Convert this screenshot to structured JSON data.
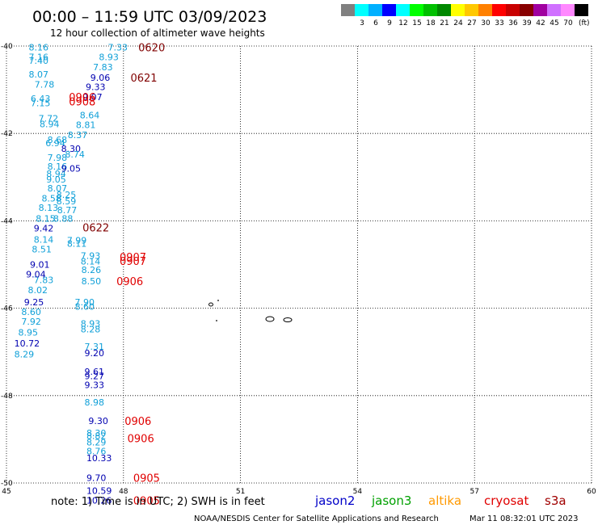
{
  "header": {
    "title": "00:00 – 11:59 UTC 03/09/2023",
    "subtitle": "12 hour collection of altimeter wave heights"
  },
  "legend": {
    "unit": "(ft)",
    "swatches": [
      {
        "label": "",
        "color": "#808080"
      },
      {
        "label": "3",
        "color": "#00ffff"
      },
      {
        "label": "6",
        "color": "#00b0ff"
      },
      {
        "label": "9",
        "color": "#0000ff"
      },
      {
        "label": "12",
        "color": "#00ffff"
      },
      {
        "label": "15",
        "color": "#00ff00"
      },
      {
        "label": "18",
        "color": "#00c000"
      },
      {
        "label": "21",
        "color": "#008800"
      },
      {
        "label": "24",
        "color": "#ffff00"
      },
      {
        "label": "27",
        "color": "#ffc800"
      },
      {
        "label": "30",
        "color": "#ff8000"
      },
      {
        "label": "33",
        "color": "#ff0000"
      },
      {
        "label": "36",
        "color": "#c80000"
      },
      {
        "label": "39",
        "color": "#880000"
      },
      {
        "label": "42",
        "color": "#a000a0"
      },
      {
        "label": "45",
        "color": "#d070ff"
      },
      {
        "label": "70",
        "color": "#ff88ff"
      },
      {
        "label": "",
        "color": "#000000"
      }
    ]
  },
  "axes": {
    "lon_ticks": [
      "45",
      "48",
      "51",
      "54",
      "57",
      "60"
    ],
    "lat_ticks": [
      "-40",
      "-42",
      "-44",
      "-46",
      "-48",
      "-50"
    ],
    "lon_range": [
      45,
      60
    ],
    "lat_range": [
      -40,
      -50
    ]
  },
  "colors": {
    "jason2": "#0000c8",
    "jason3": "#00a000",
    "altika": "#ff9900",
    "cryosat": "#e00000",
    "s3a": "#a00000",
    "pass_light": "#10a0d8",
    "pass_dark": "#0000b0",
    "time_red": "#e00000",
    "time_dark": "#800000"
  },
  "observations": [
    {
      "lon": 45.57,
      "lat": -40.03,
      "text": "8.16",
      "c": "light"
    },
    {
      "lon": 45.57,
      "lat": -40.25,
      "text": "7.16",
      "c": "light"
    },
    {
      "lon": 45.57,
      "lat": -40.33,
      "text": "7.40",
      "c": "light"
    },
    {
      "lon": 45.57,
      "lat": -40.65,
      "text": "8.07",
      "c": "light"
    },
    {
      "lon": 45.72,
      "lat": -40.88,
      "text": "7.78",
      "c": "light"
    },
    {
      "lon": 45.62,
      "lat": -41.2,
      "text": "6.43",
      "c": "light"
    },
    {
      "lon": 45.62,
      "lat": -41.3,
      "text": "7.15",
      "c": "light"
    },
    {
      "lon": 45.82,
      "lat": -41.65,
      "text": "7.72",
      "c": "light"
    },
    {
      "lon": 45.85,
      "lat": -41.78,
      "text": "8.94",
      "c": "light"
    },
    {
      "lon": 46.05,
      "lat": -42.14,
      "text": "8.68",
      "c": "light"
    },
    {
      "lon": 46.0,
      "lat": -42.22,
      "text": "6.94",
      "c": "light"
    },
    {
      "lon": 46.05,
      "lat": -42.55,
      "text": "7.98",
      "c": "light"
    },
    {
      "lon": 46.05,
      "lat": -42.75,
      "text": "8.16",
      "c": "light"
    },
    {
      "lon": 46.02,
      "lat": -42.92,
      "text": "8.94",
      "c": "light"
    },
    {
      "lon": 46.02,
      "lat": -43.05,
      "text": "9.05",
      "c": "light"
    },
    {
      "lon": 46.05,
      "lat": -43.25,
      "text": "8.07",
      "c": "light"
    },
    {
      "lon": 45.9,
      "lat": -43.48,
      "text": "8.58",
      "c": "light"
    },
    {
      "lon": 45.82,
      "lat": -43.7,
      "text": "8.13",
      "c": "light"
    },
    {
      "lon": 45.75,
      "lat": -43.95,
      "text": "8.15",
      "c": "light"
    },
    {
      "lon": 45.7,
      "lat": -44.43,
      "text": "8.14",
      "c": "light"
    },
    {
      "lon": 45.65,
      "lat": -44.65,
      "text": "8.51",
      "c": "light"
    },
    {
      "lon": 45.7,
      "lat": -45.35,
      "text": "7.83",
      "c": "light"
    },
    {
      "lon": 45.55,
      "lat": -45.58,
      "text": "8.02",
      "c": "light"
    },
    {
      "lon": 45.38,
      "lat": -46.08,
      "text": "8.60",
      "c": "light"
    },
    {
      "lon": 45.38,
      "lat": -46.3,
      "text": "7.92",
      "c": "light"
    },
    {
      "lon": 45.3,
      "lat": -46.55,
      "text": "8.95",
      "c": "light"
    },
    {
      "lon": 45.2,
      "lat": -47.05,
      "text": "8.29",
      "c": "light"
    },
    {
      "lon": 45.7,
      "lat": -44.17,
      "text": "9.42",
      "c": "dark"
    },
    {
      "lon": 45.6,
      "lat": -45.0,
      "text": "9.01",
      "c": "dark"
    },
    {
      "lon": 45.5,
      "lat": -45.22,
      "text": "9.04",
      "c": "dark"
    },
    {
      "lon": 45.45,
      "lat": -45.86,
      "text": "9.25",
      "c": "dark"
    },
    {
      "lon": 45.2,
      "lat": -46.8,
      "text": "10.72",
      "c": "dark"
    },
    {
      "lon": 46.4,
      "lat": -42.8,
      "text": "9.05",
      "c": "dark"
    },
    {
      "lon": 46.4,
      "lat": -42.35,
      "text": "8.30",
      "c": "dark"
    },
    {
      "lon": 47.6,
      "lat": -40.03,
      "text": "7.33",
      "c": "light"
    },
    {
      "lon": 47.37,
      "lat": -40.25,
      "text": "8.93",
      "c": "light"
    },
    {
      "lon": 47.22,
      "lat": -40.48,
      "text": "7.83",
      "c": "light"
    },
    {
      "lon": 47.15,
      "lat": -40.72,
      "text": "9.06",
      "c": "dark"
    },
    {
      "lon": 47.03,
      "lat": -40.93,
      "text": "9.33",
      "c": "dark"
    },
    {
      "lon": 46.95,
      "lat": -41.16,
      "text": "9.07",
      "c": "dark"
    },
    {
      "lon": 46.88,
      "lat": -41.58,
      "text": "8.64",
      "c": "light"
    },
    {
      "lon": 46.78,
      "lat": -41.8,
      "text": "8.81",
      "c": "light"
    },
    {
      "lon": 46.57,
      "lat": -42.03,
      "text": "8.37",
      "c": "light"
    },
    {
      "lon": 46.5,
      "lat": -42.48,
      "text": "8.74",
      "c": "light"
    },
    {
      "lon": 46.28,
      "lat": -43.4,
      "text": "8.25",
      "c": "light"
    },
    {
      "lon": 46.28,
      "lat": -43.55,
      "text": "8.59",
      "c": "light"
    },
    {
      "lon": 46.3,
      "lat": -43.75,
      "text": "8.77",
      "c": "light"
    },
    {
      "lon": 46.2,
      "lat": -43.95,
      "text": "8.88",
      "c": "light"
    },
    {
      "lon": 46.55,
      "lat": -44.45,
      "text": "7.99",
      "c": "light"
    },
    {
      "lon": 46.55,
      "lat": -44.52,
      "text": "8.11",
      "c": "light"
    },
    {
      "lon": 46.9,
      "lat": -44.8,
      "text": "7.93",
      "c": "light"
    },
    {
      "lon": 46.9,
      "lat": -44.93,
      "text": "8.14",
      "c": "light"
    },
    {
      "lon": 46.92,
      "lat": -45.12,
      "text": "8.26",
      "c": "light"
    },
    {
      "lon": 46.92,
      "lat": -45.38,
      "text": "8.50",
      "c": "light"
    },
    {
      "lon": 46.75,
      "lat": -45.86,
      "text": "7.90",
      "c": "light"
    },
    {
      "lon": 46.75,
      "lat": -45.96,
      "text": "8.60",
      "c": "light"
    },
    {
      "lon": 46.9,
      "lat": -46.35,
      "text": "8.93",
      "c": "light"
    },
    {
      "lon": 46.9,
      "lat": -46.48,
      "text": "8.28",
      "c": "light"
    },
    {
      "lon": 47.0,
      "lat": -46.88,
      "text": "7.31",
      "c": "light"
    },
    {
      "lon": 47.0,
      "lat": -47.02,
      "text": "9.20",
      "c": "dark"
    },
    {
      "lon": 47.0,
      "lat": -47.45,
      "text": "9.61",
      "c": "dark"
    },
    {
      "lon": 47.0,
      "lat": -47.55,
      "text": "9.27",
      "c": "dark"
    },
    {
      "lon": 47.0,
      "lat": -47.75,
      "text": "9.33",
      "c": "dark"
    },
    {
      "lon": 47.0,
      "lat": -48.15,
      "text": "8.98",
      "c": "light"
    },
    {
      "lon": 47.1,
      "lat": -48.58,
      "text": "9.30",
      "c": "dark"
    },
    {
      "lon": 47.05,
      "lat": -48.85,
      "text": "8.30",
      "c": "light"
    },
    {
      "lon": 47.05,
      "lat": -48.92,
      "text": "8.82",
      "c": "light"
    },
    {
      "lon": 47.05,
      "lat": -49.07,
      "text": "8.29",
      "c": "light"
    },
    {
      "lon": 47.05,
      "lat": -49.27,
      "text": "8.76",
      "c": "light"
    },
    {
      "lon": 47.05,
      "lat": -49.43,
      "text": "10.33",
      "c": "dark"
    },
    {
      "lon": 47.05,
      "lat": -49.88,
      "text": "9.70",
      "c": "dark"
    },
    {
      "lon": 47.05,
      "lat": -50.18,
      "text": "10.59",
      "c": "dark"
    },
    {
      "lon": 47.05,
      "lat": -50.4,
      "text": "10.26",
      "c": "dark"
    }
  ],
  "time_labels": [
    {
      "lon": 48.38,
      "lat": -40.03,
      "text": "0620",
      "c": "dark"
    },
    {
      "lon": 48.18,
      "lat": -40.72,
      "text": "0621",
      "c": "dark"
    },
    {
      "lon": 46.6,
      "lat": -41.16,
      "text": "0906",
      "c": "red"
    },
    {
      "lon": 46.6,
      "lat": -41.27,
      "text": "0908",
      "c": "red"
    },
    {
      "lon": 46.95,
      "lat": -44.15,
      "text": "0622",
      "c": "dark"
    },
    {
      "lon": 47.9,
      "lat": -44.82,
      "text": "0907",
      "c": "red"
    },
    {
      "lon": 47.9,
      "lat": -44.92,
      "text": "0907",
      "c": "red"
    },
    {
      "lon": 47.82,
      "lat": -45.38,
      "text": "0906",
      "c": "red"
    },
    {
      "lon": 48.03,
      "lat": -48.58,
      "text": "0906",
      "c": "red"
    },
    {
      "lon": 48.1,
      "lat": -48.97,
      "text": "0906",
      "c": "red"
    },
    {
      "lon": 48.25,
      "lat": -49.88,
      "text": "0905",
      "c": "red"
    },
    {
      "lon": 48.25,
      "lat": -50.4,
      "text": "0905",
      "c": "red"
    }
  ],
  "footer": {
    "note": "note:  1) Time is in UTC;  2) SWH is in feet",
    "satellites": {
      "jason2": "jason2",
      "jason3": "jason3",
      "altika": "altika",
      "cryosat": "cryosat",
      "s3a": "s3a"
    },
    "credit": "NOAA/NESDIS Center for Satellite Applications and Research",
    "timestamp": "Mar 11 08:32:01 UTC 2023"
  }
}
